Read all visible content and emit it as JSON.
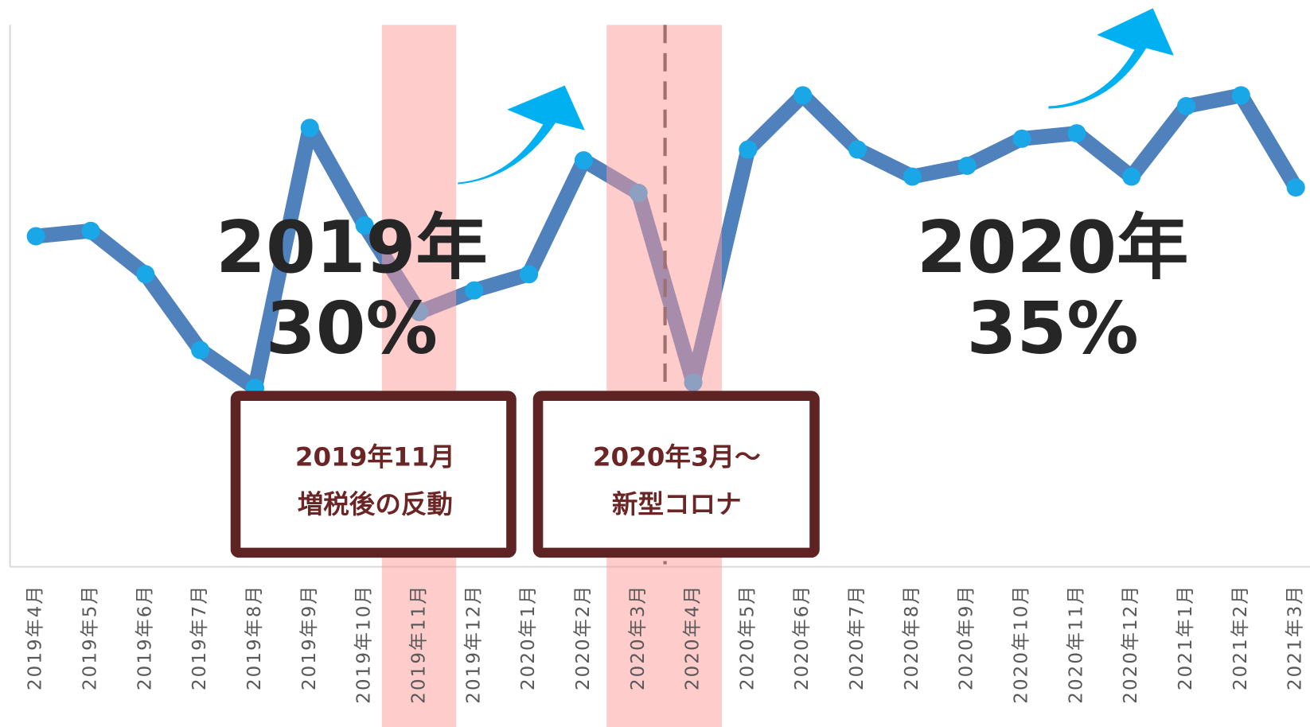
{
  "chart_data": {
    "type": "line",
    "categories": [
      "2019年4月",
      "2019年5月",
      "2019年6月",
      "2019年7月",
      "2019年8月",
      "2019年9月",
      "2019年10月",
      "2019年11月",
      "2019年12月",
      "2020年1月",
      "2020年2月",
      "2020年3月",
      "2020年4月",
      "2020年5月",
      "2020年6月",
      "2020年7月",
      "2020年8月",
      "2020年9月",
      "2020年10月",
      "2020年11月",
      "2020年12月",
      "2021年1月",
      "2021年2月",
      "2021年3月"
    ],
    "series": [
      {
        "color": "#4f81bd",
        "marker_color": "#1aa7e8",
        "values": [
          61,
          62,
          54,
          40,
          33,
          81,
          63,
          47,
          51,
          54,
          75,
          69,
          34,
          77,
          87,
          77,
          72,
          74,
          79,
          80,
          72,
          85,
          87,
          70
        ]
      }
    ],
    "ylim": [
      0,
      100
    ],
    "annotations": [
      {
        "lines": [
          "2019年",
          "30%"
        ]
      },
      {
        "lines": [
          "2020年",
          "35%"
        ]
      }
    ],
    "callouts": [
      {
        "lines": [
          "2019年11月",
          "増税後の反動"
        ]
      },
      {
        "lines": [
          "2020年3月～",
          "新型コロナ"
        ]
      }
    ]
  }
}
